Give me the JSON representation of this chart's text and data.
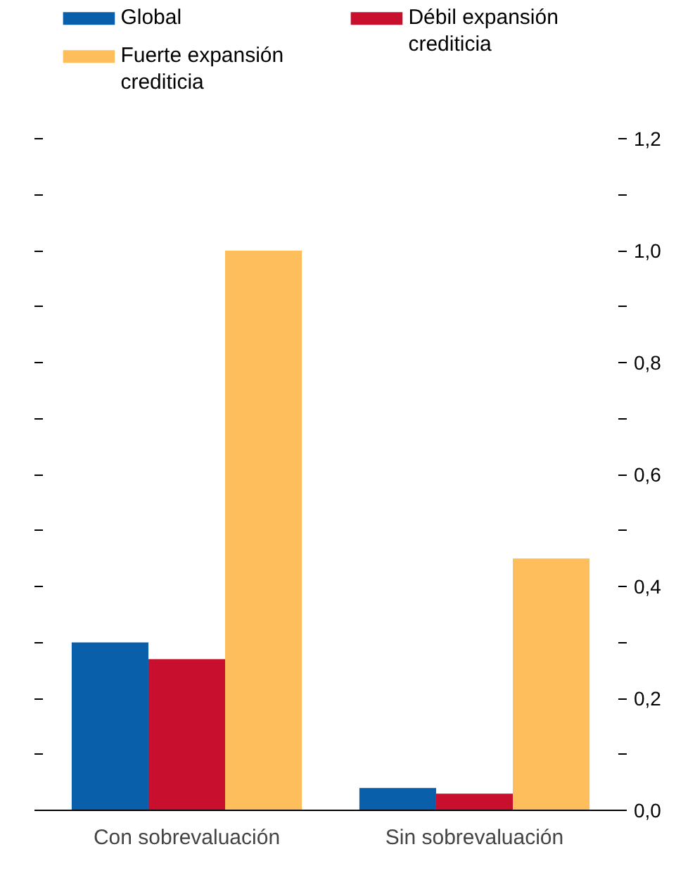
{
  "chart_data": {
    "type": "bar",
    "categories": [
      "Con sobrevaluación",
      "Sin sobrevaluación"
    ],
    "series": [
      {
        "name": "Global",
        "color": "#0a5fab",
        "values": [
          0.3,
          0.04
        ]
      },
      {
        "name": "Débil expansión crediticia",
        "color": "#c8102e",
        "values": [
          0.27,
          0.03
        ]
      },
      {
        "name": "Fuerte expansión crediticia",
        "color": "#fdbe5b",
        "values": [
          1.0,
          0.45
        ]
      }
    ],
    "ylim": [
      0,
      1.2
    ],
    "yticks": [
      {
        "value": 0,
        "label": "0,0"
      },
      {
        "value": 0.1,
        "label": null
      },
      {
        "value": 0.2,
        "label": "0,2"
      },
      {
        "value": 0.3,
        "label": null
      },
      {
        "value": 0.4,
        "label": "0,4"
      },
      {
        "value": 0.5,
        "label": null
      },
      {
        "value": 0.6,
        "label": "0,6"
      },
      {
        "value": 0.7,
        "label": null
      },
      {
        "value": 0.8,
        "label": "0,8"
      },
      {
        "value": 0.9,
        "label": null
      },
      {
        "value": 1.0,
        "label": "1,0"
      },
      {
        "value": 1.1,
        "label": null
      },
      {
        "value": 1.2,
        "label": "1,2"
      }
    ],
    "grid": false,
    "legend": "top"
  }
}
